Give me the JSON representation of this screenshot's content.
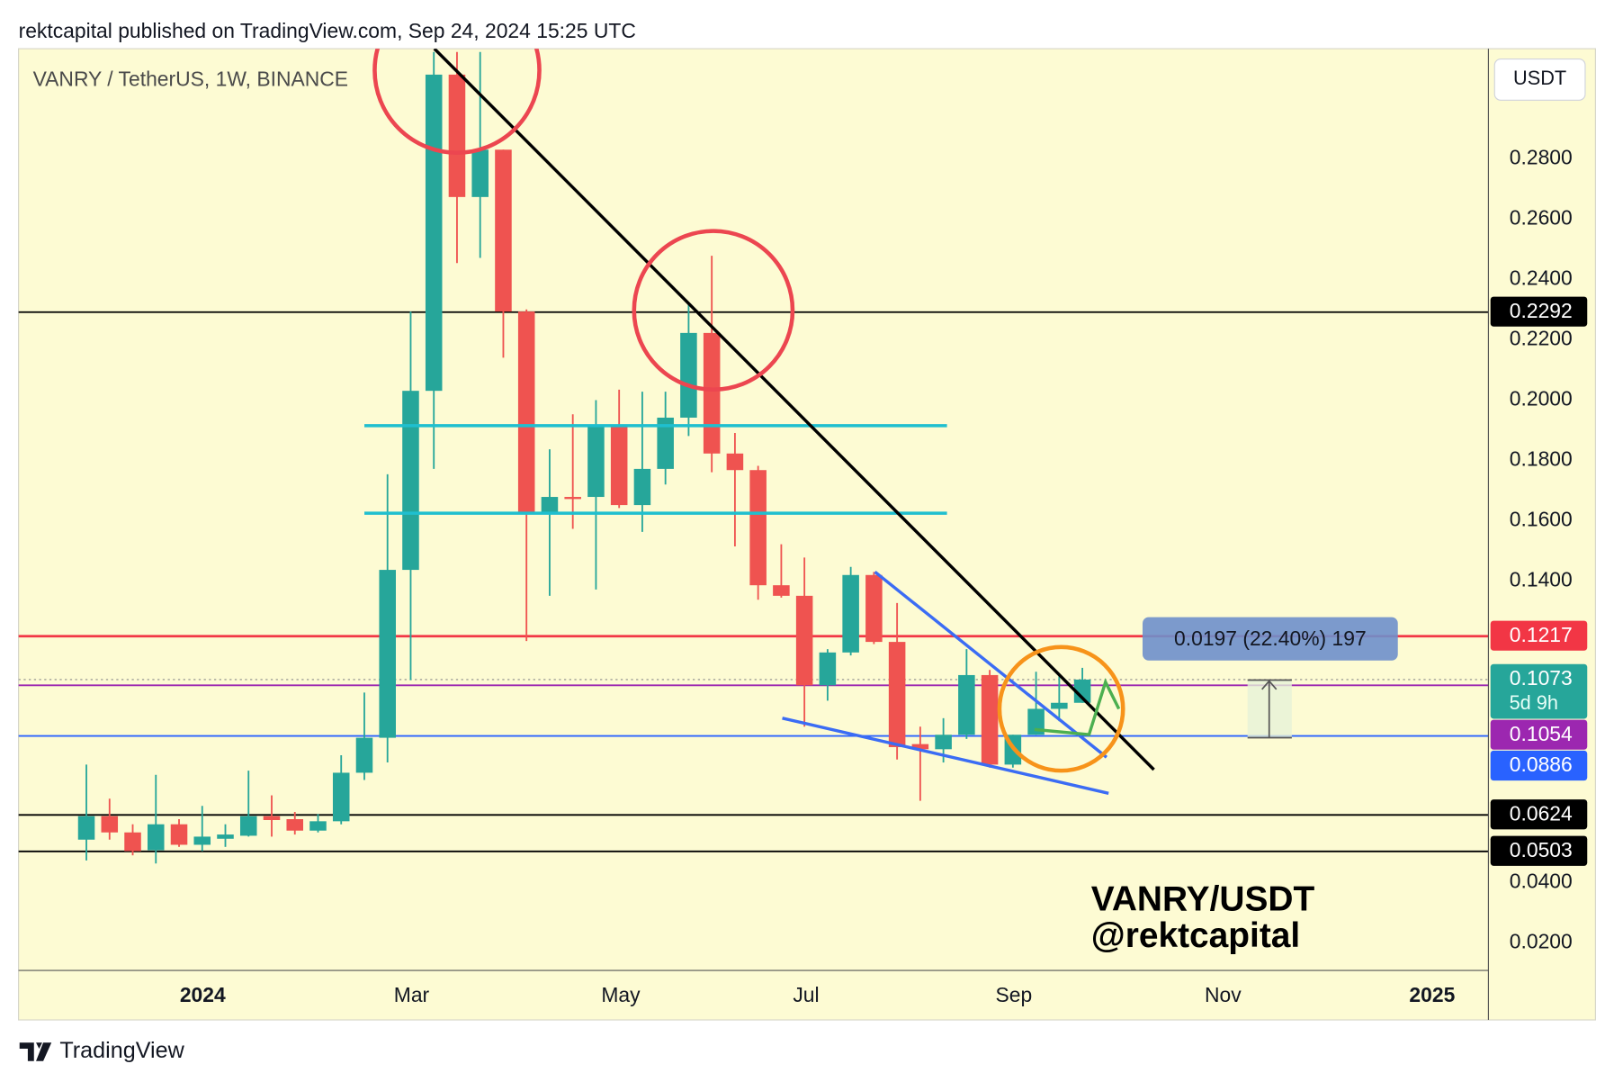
{
  "header": "rektcapital published on TradingView.com, Sep 24, 2024 15:25 UTC",
  "footer": "TradingView",
  "chart_data": {
    "type": "candlestick",
    "title": "VANRY / TetherUS, 1W, BINANCE",
    "currency": "USDT",
    "watermark": [
      "VANRY/USDT",
      "@rektcapital"
    ],
    "measure_label": "0.0197 (22.40%) 197",
    "up_color": "#26a69a",
    "down_color": "#ef5350",
    "open": [
      0.0542,
      0.062,
      0.0566,
      0.0507,
      0.0593,
      0.0525,
      0.0545,
      0.0555,
      0.062,
      0.061,
      0.0572,
      0.0603,
      0.0764,
      0.088,
      0.1437,
      0.2031,
      0.308,
      0.2674,
      0.2831,
      0.2294,
      0.1625,
      0.1679,
      0.1679,
      0.1915,
      0.1652,
      0.1772,
      0.1942,
      0.2223,
      0.1823,
      0.1768,
      0.1386,
      0.1351,
      0.1054,
      0.1163,
      0.142,
      0.1198,
      0.0859,
      0.0842,
      0.089,
      0.1088,
      0.0791,
      0.089,
      0.0976,
      0.0996
    ],
    "high": [
      0.0791,
      0.0678,
      0.0593,
      0.0757,
      0.061,
      0.0654,
      0.0593,
      0.0771,
      0.0689,
      0.0634,
      0.0627,
      0.0822,
      0.103,
      0.1754,
      0.2294,
      0.3155,
      0.3155,
      0.3155,
      0.2831,
      0.2301,
      0.1837,
      0.1953,
      0.2,
      0.2035,
      0.2028,
      0.2028,
      0.2318,
      0.2479,
      0.1891,
      0.1782,
      0.1522,
      0.1478,
      0.1174,
      0.1447,
      0.143,
      0.1327,
      0.0917,
      0.0945,
      0.1174,
      0.1105,
      0.089,
      0.1099,
      0.1088,
      0.1112
    ],
    "low": [
      0.0473,
      0.0542,
      0.049,
      0.0463,
      0.0518,
      0.0504,
      0.0518,
      0.0552,
      0.0552,
      0.0559,
      0.0566,
      0.0593,
      0.074,
      0.0798,
      0.1071,
      0.1772,
      0.2455,
      0.2472,
      0.2141,
      0.1201,
      0.1351,
      0.1573,
      0.1372,
      0.1642,
      0.1563,
      0.172,
      0.1881,
      0.1761,
      0.1515,
      0.1338,
      0.1345,
      0.0917,
      0.1003,
      0.1153,
      0.1191,
      0.0808,
      0.0671,
      0.0798,
      0.0876,
      0.0781,
      0.0781,
      0.089,
      0.0935,
      0.0996
    ],
    "close": [
      0.062,
      0.0566,
      0.0504,
      0.0593,
      0.0525,
      0.0552,
      0.0559,
      0.062,
      0.0607,
      0.0572,
      0.0603,
      0.0764,
      0.088,
      0.1437,
      0.2031,
      0.308,
      0.2674,
      0.2831,
      0.2294,
      0.1625,
      0.1679,
      0.1672,
      0.1915,
      0.1652,
      0.1772,
      0.1942,
      0.2223,
      0.1823,
      0.1768,
      0.1386,
      0.1351,
      0.1054,
      0.1163,
      0.142,
      0.1198,
      0.0849,
      0.0842,
      0.089,
      0.1088,
      0.0791,
      0.089,
      0.0976,
      0.0996,
      0.1073
    ],
    "xlim": [
      -2.93,
      60.53
    ],
    "xticks": [
      {
        "value": 5.02,
        "label": "2024"
      },
      {
        "value": 14.04,
        "label": "Mar"
      },
      {
        "value": 23.07,
        "label": "May"
      },
      {
        "value": 31.07,
        "label": "Jul"
      },
      {
        "value": 40.04,
        "label": "Sep"
      },
      {
        "value": 49.07,
        "label": "Nov"
      },
      {
        "value": 58.1,
        "label": "2025"
      }
    ],
    "ylim": [
      0.0108,
      0.3166
    ],
    "yticks": [
      {
        "value": 0.02,
        "label": "0.0200"
      },
      {
        "value": 0.04,
        "label": "0.0400"
      },
      {
        "value": 0.14,
        "label": "0.1400"
      },
      {
        "value": 0.16,
        "label": "0.1600"
      },
      {
        "value": 0.18,
        "label": "0.1800"
      },
      {
        "value": 0.2,
        "label": "0.2000"
      },
      {
        "value": 0.22,
        "label": "0.2200"
      },
      {
        "value": 0.24,
        "label": "0.2400"
      },
      {
        "value": 0.26,
        "label": "0.2600"
      },
      {
        "value": 0.28,
        "label": "0.2800"
      }
    ],
    "price_lines": [
      {
        "value": 0.2292,
        "color": "#000000"
      },
      {
        "value": 0.1217,
        "color": "#f23645"
      },
      {
        "value": 0.1073,
        "color": "#26a69a",
        "style": "dotted",
        "countdown": "5d 9h"
      },
      {
        "value": 0.1054,
        "color": "#9c27b0"
      },
      {
        "value": 0.0886,
        "color": "#2962ff"
      },
      {
        "value": 0.0624,
        "color": "#000000"
      },
      {
        "value": 0.0503,
        "color": "#000000"
      }
    ]
  }
}
